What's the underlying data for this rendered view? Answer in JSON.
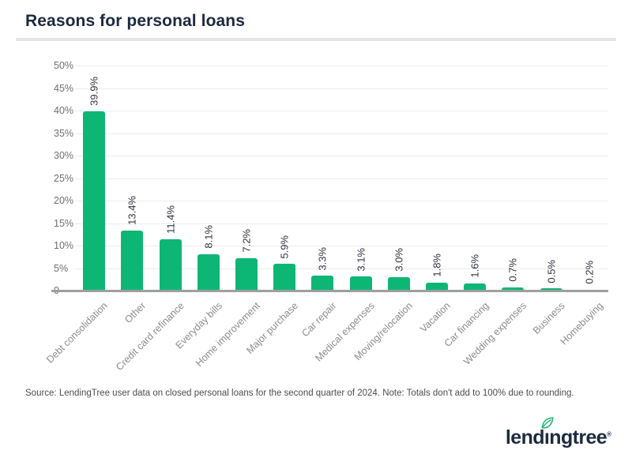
{
  "page": {
    "title": "Reasons for personal loans",
    "source_note": "Source: LendingTree user data on closed personal loans for the second quarter of 2024. Note: Totals don't add to 100% due to rounding.",
    "logo": {
      "label": "lendingtree",
      "part1": "lend",
      "part2": "ı",
      "part3": "ngtree",
      "trademark": "®"
    }
  },
  "colors": {
    "bar_green": "#0eb676",
    "leaf_green": "#21ba74",
    "title_navy": "#1c2940",
    "axis_gray": "#9e9e9e",
    "gridline_gray": "#ececec"
  },
  "chart_data": {
    "type": "bar",
    "title": "Reasons for personal loans",
    "categories": [
      "Debt consolidation",
      "Other",
      "Credit card refinance",
      "Everyday bills",
      "Home improvement",
      "Major purchase",
      "Car repair",
      "Medical expenses",
      "Moving/relocation",
      "Vacation",
      "Car financing",
      "Wedding expenses",
      "Business",
      "Homebuying"
    ],
    "values": [
      39.9,
      13.4,
      11.4,
      8.1,
      7.2,
      5.9,
      3.3,
      3.1,
      3.0,
      1.8,
      1.6,
      0.7,
      0.5,
      0.2
    ],
    "value_labels": [
      "39.9%",
      "13.4%",
      "11.4%",
      "8.1%",
      "7.2%",
      "5.9%",
      "3.3%",
      "3.1%",
      "3.0%",
      "1.8%",
      "1.6%",
      "0.7%",
      "0.5%",
      "0.2%"
    ],
    "xlabel": "",
    "ylabel": "",
    "ylim": [
      0,
      50
    ],
    "y_ticks": [
      "50%",
      "45%",
      "40%",
      "35%",
      "30%",
      "25%",
      "20%",
      "15%",
      "10%",
      "5%",
      "0"
    ],
    "grid": true,
    "legend_position": "none",
    "bar_label_rotation": -90,
    "category_label_rotation": -45
  }
}
